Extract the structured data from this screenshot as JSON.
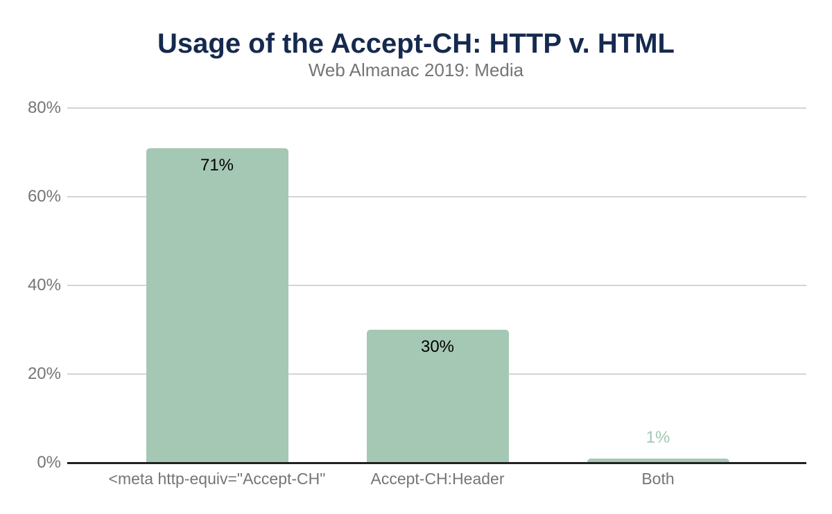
{
  "header": {
    "title": "Usage of the Accept-CH: HTTP v. HTML",
    "subtitle": "Web Almanac 2019: Media"
  },
  "chart_data": {
    "type": "bar",
    "title": "Usage of the Accept-CH: HTTP v. HTML",
    "subtitle": "Web Almanac 2019: Media",
    "categories": [
      "<meta http-equiv=\"Accept-CH\"",
      "Accept-CH:Header",
      "Both"
    ],
    "values": [
      71,
      30,
      1
    ],
    "value_labels": [
      "71%",
      "30%",
      "1%"
    ],
    "xlabel": "",
    "ylabel": "",
    "ylim": [
      0,
      80
    ],
    "ytick_step": 20,
    "ytick_labels": [
      "0%",
      "20%",
      "40%",
      "60%",
      "80%"
    ],
    "grid": true,
    "legend": false,
    "colors": {
      "bar": "#a5c8b4",
      "value_label_inside": "#000000",
      "value_label_outside": "#a5c8b4",
      "title": "#16294e",
      "subtitle": "#757575",
      "axis_labels": "#757575",
      "gridline": "#d4d4d4",
      "axis_line": "#212121",
      "background": "#ffffff"
    }
  }
}
